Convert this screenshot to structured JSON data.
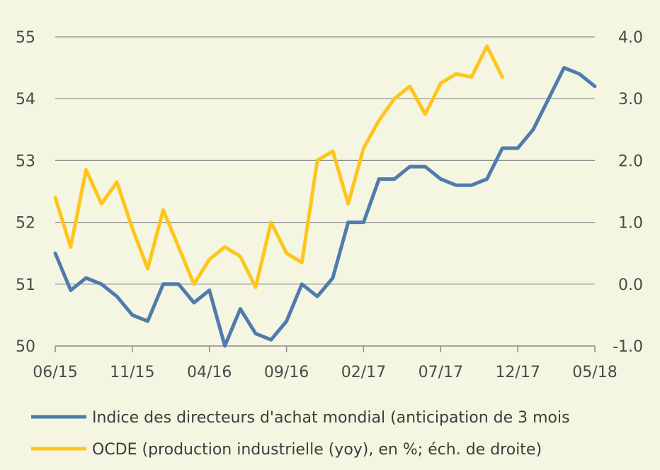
{
  "colors": {
    "background": "#f4f6e2",
    "grid": "#8c8c8c",
    "axis": "#8c8c8c",
    "blue": "#4f7cac",
    "yellow": "#ffc51d"
  },
  "chart_data": {
    "type": "line",
    "x_tick_labels": [
      "06/15",
      "11/15",
      "04/16",
      "09/16",
      "02/17",
      "07/17",
      "12/17",
      "05/18"
    ],
    "y_left": {
      "range": [
        50,
        55
      ],
      "ticks": [
        "50",
        "51",
        "52",
        "53",
        "54",
        "55"
      ]
    },
    "y_right": {
      "range": [
        -1.0,
        4.0
      ],
      "ticks": [
        "-1.0",
        "0.0",
        "1.0",
        "2.0",
        "3.0",
        "4.0"
      ]
    },
    "grid": "horizontal",
    "legend_position": "bottom",
    "series": [
      {
        "name": "Indice des directeurs d'achat mondial (anticipation de 3 mois",
        "axis": "left",
        "color": "blue",
        "values": [
          51.5,
          50.9,
          51.1,
          51.0,
          50.8,
          50.5,
          50.4,
          51.0,
          51.0,
          50.7,
          50.9,
          50.0,
          50.6,
          50.2,
          50.1,
          50.4,
          51.0,
          50.8,
          51.1,
          52.0,
          52.0,
          52.7,
          52.7,
          52.9,
          52.9,
          52.7,
          52.6,
          52.6,
          52.7,
          53.2,
          53.2,
          53.5,
          54.0,
          54.5,
          54.4,
          54.2
        ]
      },
      {
        "name": "OCDE (production industrielle (yoy), en %; éch. de droite)",
        "axis": "right",
        "color": "yellow",
        "values": [
          1.4,
          0.6,
          1.85,
          1.3,
          1.65,
          0.9,
          0.25,
          1.2,
          0.6,
          0.0,
          0.4,
          0.6,
          0.45,
          -0.05,
          1.0,
          0.5,
          0.35,
          2.0,
          2.15,
          1.3,
          2.2,
          2.65,
          3.0,
          3.2,
          2.75,
          3.25,
          3.4,
          3.35,
          3.85,
          3.35
        ]
      }
    ]
  }
}
